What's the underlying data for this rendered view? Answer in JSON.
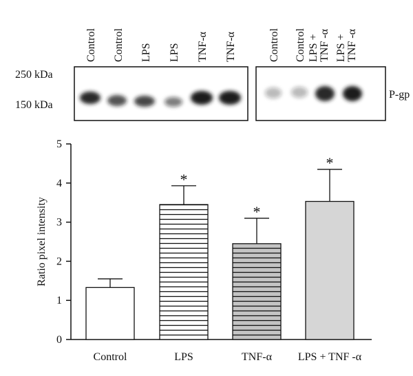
{
  "blot": {
    "lanes_left": [
      "Control",
      "Control",
      "LPS",
      "LPS",
      "TNF-α",
      "TNF-α"
    ],
    "lanes_right": [
      [
        "Control"
      ],
      [
        "Control"
      ],
      [
        "LPS +",
        "TNF -α"
      ],
      [
        "LPS +",
        "TNF -α"
      ]
    ],
    "markers": [
      "250 kDa",
      "150 kDa"
    ],
    "protein": "P-gp"
  },
  "chart_data": {
    "type": "bar",
    "categories": [
      "Control",
      "LPS",
      "TNF-α",
      "LPS + TNF -α"
    ],
    "values": [
      1.33,
      3.45,
      2.45,
      3.53
    ],
    "errors": [
      0.22,
      0.48,
      0.65,
      0.82
    ],
    "colors": [
      "#ffffff",
      "#ffffff",
      "#c4c4c4",
      "#d6d6d6"
    ],
    "hatch": [
      false,
      true,
      true,
      false
    ],
    "annotations": [
      {
        "category": 1,
        "text": "*"
      },
      {
        "category": 2,
        "text": "*"
      },
      {
        "category": 3,
        "text": "*"
      }
    ],
    "ylabel": "Ratio pixel intensity",
    "ylim": [
      0,
      5
    ],
    "yticks": [
      0,
      1,
      2,
      3,
      4,
      5
    ],
    "grid": false
  }
}
